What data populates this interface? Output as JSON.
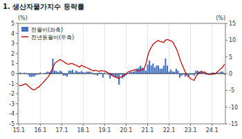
{
  "chart_data": {
    "type": "bar",
    "title": "1.  생산자물가지수 등락률",
    "ylabel": "(%)",
    "y2label": "(%)",
    "categories": [
      "15.1",
      null,
      null,
      null,
      null,
      null,
      null,
      null,
      null,
      null,
      null,
      null,
      "16.1",
      null,
      null,
      null,
      null,
      null,
      null,
      null,
      null,
      null,
      null,
      null,
      "17.1",
      null,
      null,
      null,
      null,
      null,
      null,
      null,
      null,
      null,
      null,
      null,
      "18.1",
      null,
      null,
      null,
      null,
      null,
      null,
      null,
      null,
      null,
      null,
      null,
      "19.1",
      null,
      null,
      null,
      null,
      null,
      null,
      null,
      null,
      null,
      null,
      null,
      "20.1",
      null,
      null,
      null,
      null,
      null,
      null,
      null,
      null,
      null,
      null,
      null,
      "21.1",
      null,
      null,
      null,
      null,
      null,
      null,
      null,
      null,
      null,
      null,
      null,
      "22.1",
      null,
      null,
      null,
      null,
      null,
      null,
      null,
      null,
      null,
      null,
      null,
      "23.1",
      null,
      null,
      null,
      null,
      null,
      null,
      null,
      null,
      null,
      null,
      null,
      "24.1",
      null,
      null,
      null,
      null,
      null,
      null,
      null
    ],
    "series": [
      {
        "name": "전월비(좌축)",
        "type": "bar",
        "color": "#4472C4",
        "values": [
          0.05,
          0.1,
          0.0,
          0.1,
          0.05,
          -0.1,
          -0.3,
          -0.35,
          -0.3,
          -0.25,
          -0.1,
          -0.1,
          0.1,
          0.0,
          0.05,
          0.1,
          0.2,
          0.15,
          0.3,
          1.5,
          0.3,
          0.25,
          0.15,
          0.3,
          0.2,
          -0.2,
          -0.2,
          -0.3,
          0.3,
          0.3,
          0.4,
          0.1,
          0.3,
          0.2,
          0.15,
          0.25,
          0.15,
          0.1,
          0.2,
          0.2,
          0.2,
          0.1,
          -0.1,
          -0.1,
          -0.2,
          0.1,
          0.1,
          -0.4,
          0.1,
          0.0,
          -0.1,
          -0.5,
          -0.2,
          -0.3,
          -0.4,
          -0.4,
          -1.1,
          -0.1,
          -0.5,
          -0.3,
          -0.1,
          0.0,
          0.2,
          0.15,
          0.2,
          0.3,
          0.5,
          0.6,
          0.8,
          0.6,
          0.5,
          0.3,
          0.9,
          1.3,
          0.8,
          1.0,
          0.6,
          0.8,
          0.8,
          0.5,
          0.5,
          0.8,
          1.5,
          0.8,
          0.2,
          0.4,
          0.2,
          0.2,
          0.5,
          0.3,
          -0.4,
          -0.2,
          -0.1,
          -0.3,
          -0.1,
          -0.3,
          -0.1,
          -0.1,
          -0.2,
          0.3,
          0.3,
          0.2,
          0.3,
          0.2,
          0.1,
          -0.1,
          -0.1,
          0.0,
          0.1,
          0.1,
          0.0,
          0.1,
          0.1,
          0.2,
          0.2,
          -0.1
        ]
      },
      {
        "name": "전년동월비(우측)",
        "type": "line",
        "color": "#CC0000",
        "axis": "y2",
        "values": [
          -3.5,
          -3.6,
          -3.4,
          -3.2,
          -3.0,
          -3.6,
          -4.0,
          -4.5,
          -4.8,
          -4.8,
          -4.3,
          -4.1,
          -3.5,
          -3.0,
          -2.4,
          -1.8,
          -1.2,
          -0.5,
          0.5,
          1.8,
          3.0,
          3.5,
          3.8,
          4.2,
          3.9,
          3.6,
          3.2,
          2.9,
          2.8,
          3.0,
          3.0,
          2.7,
          2.5,
          2.2,
          2.0,
          2.5,
          2.2,
          2.0,
          1.8,
          1.5,
          1.2,
          1.0,
          0.8,
          1.0,
          0.8,
          0.7,
          0.9,
          0.8,
          0.8,
          0.5,
          0.2,
          0.0,
          -0.5,
          -0.8,
          -1.0,
          -1.2,
          -1.5,
          -1.0,
          -0.8,
          -0.5,
          -0.2,
          0.5,
          0.6,
          0.9,
          1.0,
          1.2,
          1.0,
          0.8,
          1.0,
          1.2,
          1.5,
          2.8,
          5.2,
          6.8,
          7.8,
          8.7,
          9.2,
          9.6,
          9.9,
          9.6,
          9.5,
          9.3,
          10.0,
          10.2,
          10.0,
          9.8,
          9.5,
          8.5,
          7.5,
          6.2,
          4.5,
          3.0,
          1.8,
          0.5,
          -0.5,
          -1.0,
          -1.5,
          -1.8,
          -2.0,
          -0.8,
          -0.2,
          0.5,
          0.5,
          0.5,
          0.5,
          0.0,
          -0.2,
          -0.3,
          -0.2,
          -0.1,
          0.0,
          0.5,
          1.0,
          1.5,
          2.0,
          2.8
        ]
      }
    ],
    "ylim": [
      -5,
      5
    ],
    "yticks": [
      -5,
      -4,
      -3,
      -2,
      -1,
      0,
      1,
      2,
      3,
      4,
      5
    ],
    "y2lim": [
      -15,
      15
    ],
    "y2ticks": [
      -15,
      -10,
      -5,
      0,
      5,
      10,
      15
    ],
    "grid": true,
    "legend": "upper left"
  }
}
